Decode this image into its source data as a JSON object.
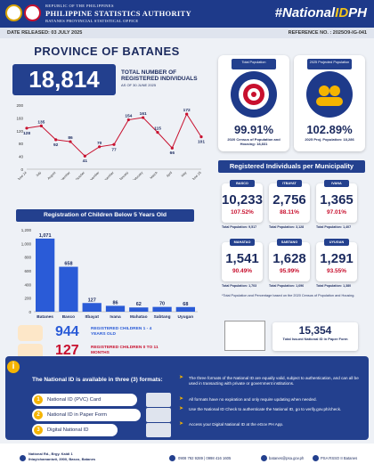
{
  "header": {
    "line1": "REPUBLIC OF THE PHILIPPINES",
    "line2": "PHILIPPINE STATISTICS AUTHORITY",
    "line3": "BATANES PROVINCIAL STATISTICAL OFFICE",
    "hashtag_prefix": "#National",
    "hashtag_id": "ID",
    "hashtag_suffix": "PH"
  },
  "meta": {
    "date_released": "DATE RELEASED: 03 JULY 2025",
    "reference": "REFERENCE NO. : 2025O9-IG-041"
  },
  "province": "PROVINCE OF BATANES",
  "total": {
    "value": "18,814",
    "label": "TOTAL NUMBER OF REGISTERED INDIVIDUALS",
    "asof": "AS OF 30 JUNE 2025"
  },
  "pop_cards": [
    {
      "caption": "Total Population",
      "pct": "99.91%",
      "note": "2020 Census of Population and Housing: 18,831"
    },
    {
      "caption": "2025 Projected Population",
      "pct": "102.89%",
      "note": "2025 Proj. Population: 18,286"
    }
  ],
  "chart_data": [
    {
      "type": "line",
      "categories": [
        "June 24",
        "July",
        "August",
        "September",
        "October",
        "November",
        "December",
        "January",
        "February",
        "March",
        "April",
        "May",
        "June 25"
      ],
      "values": [
        128,
        135,
        92,
        86,
        41,
        70,
        77,
        154,
        161,
        115,
        66,
        172,
        101
      ],
      "ylim": [
        0,
        200
      ],
      "yticks": [
        "0",
        "40",
        "80",
        "120",
        "160",
        "200"
      ]
    },
    {
      "type": "bar",
      "title": "Registration of Children Below 5 Years Old",
      "categories": [
        "Batanes",
        "Basco",
        "Itbayat",
        "Ivana",
        "Mahatao",
        "Sabtang",
        "Uyugan"
      ],
      "values": [
        1071,
        658,
        127,
        86,
        62,
        70,
        68
      ],
      "labels": [
        "1,071",
        "658",
        "127",
        "86",
        "62",
        "70",
        "68"
      ],
      "ylim": [
        0,
        1200
      ],
      "yticks": [
        "0",
        "200",
        "400",
        "600",
        "800",
        "1,000",
        "1,200"
      ]
    }
  ],
  "muni": {
    "title": "Registered Individuals per Municipality",
    "items": [
      {
        "name": "BASCO",
        "n": "10,233",
        "p": "107.52%",
        "pop": "Total Population: 9,517"
      },
      {
        "name": "ITBAYAT",
        "n": "2,756",
        "p": "88.11%",
        "pop": "Total Population: 3,128"
      },
      {
        "name": "IVANA",
        "n": "1,365",
        "p": "97.01%",
        "pop": "Total Population: 1,407"
      },
      {
        "name": "MAHATAO",
        "n": "1,541",
        "p": "90.49%",
        "pop": "Total Population: 1,703"
      },
      {
        "name": "SABTANG",
        "n": "1,628",
        "p": "95.99%",
        "pop": "Total Population: 1,696"
      },
      {
        "name": "UYUGAN",
        "n": "1,291",
        "p": "93.55%",
        "pop": "Total Population: 1,380"
      }
    ],
    "footnote": "*Total Population and Percentage based on the 2020 Census of Population and Housing."
  },
  "children": [
    {
      "n": "944",
      "label": "REGISTERED CHILDREN 1 - 4 YEARS OLD",
      "color": "#2a5bd7"
    },
    {
      "n": "127",
      "label": "REGISTERED CHILDREN 0 TO 11 MONTHS",
      "color": "#c8102e"
    }
  ],
  "paper": {
    "n": "15,354",
    "label": "Total Issued National ID in Paper Form"
  },
  "info": {
    "title": "The National ID is available in three (3) formats:",
    "formats": [
      "National ID (PVC) Card",
      "National ID in Paper Form",
      "Digital National ID"
    ],
    "bullets": [
      "The three formats of the National ID are equally valid, subject to authentication, and can all be used in transacting with private or government institutions.",
      "All formats have no expiration and only require updating when needed.",
      "Use the National ID Check to authenticate the National ID, go to verify.gov.ph/check.",
      "Access your Digital National ID at the eGov PH App."
    ]
  },
  "footer": {
    "address1": "National Rd., Brgy. Kaidi 1",
    "address2": "Ihtayichamaniwii, 3900, Basco, Batanes",
    "phone": "0908 792 9289 | 0998 416 1605",
    "email": "batanes@psa.gov.ph",
    "fb": "PSA RSSO II Batanes"
  }
}
